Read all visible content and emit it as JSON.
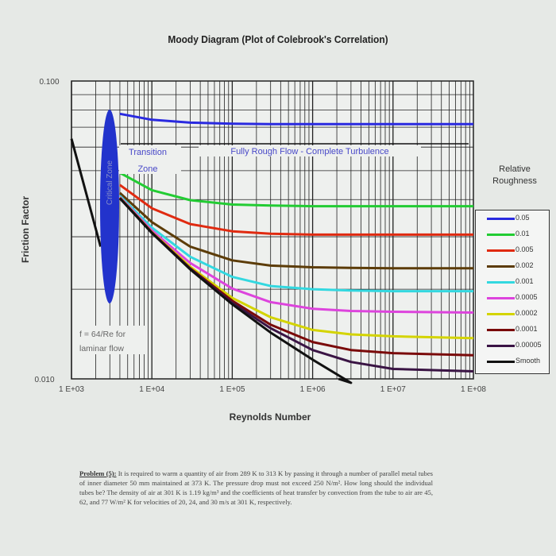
{
  "chart_data": {
    "type": "line",
    "title": "Moody Diagram (Plot of Colebrook's Correlation)",
    "xlabel": "Reynolds Number",
    "ylabel": "Friction Factor",
    "xscale": "log",
    "yscale": "log",
    "xlim": [
      1000,
      100000000
    ],
    "ylim": [
      0.01,
      0.1
    ],
    "grid": true,
    "x_tick_labels": [
      "1 E+03",
      "1 E+04",
      "1 E+05",
      "1 E+06",
      "1 E+07",
      "1 E+08"
    ],
    "y_tick_labels": [
      "0.100",
      "0.010"
    ],
    "legend_title": "Relative Roughness",
    "legend_placement": "right",
    "annotations": {
      "critical_zone": "Critical Zone",
      "transition": "Transition",
      "zone": "Zone",
      "fully_rough": "Fully Rough Flow - Complete Turbulence",
      "laminar_1": "f = 64/Re for",
      "laminar_2": "laminar flow"
    },
    "laminar": {
      "x": [
        1000,
        2300
      ],
      "y": [
        0.064,
        0.0278
      ],
      "color": "#111111"
    },
    "x": [
      4000,
      10000,
      30000,
      100000,
      300000,
      1000000,
      3000000,
      10000000,
      100000000
    ],
    "series": [
      {
        "name": "0.05",
        "color": "#2a2ae0",
        "values": [
          0.0776,
          0.0741,
          0.0725,
          0.0719,
          0.0717,
          0.0717,
          0.0717,
          0.0717,
          0.0717
        ]
      },
      {
        "name": "0.01",
        "color": "#22cc33",
        "values": [
          0.0492,
          0.043,
          0.0398,
          0.0385,
          0.0382,
          0.038,
          0.038,
          0.038,
          0.038
        ]
      },
      {
        "name": "0.005",
        "color": "#e02a10",
        "values": [
          0.0448,
          0.0374,
          0.0331,
          0.0313,
          0.0307,
          0.0305,
          0.0305,
          0.0305,
          0.0305
        ]
      },
      {
        "name": "0.002",
        "color": "#5c3c08",
        "values": [
          0.0421,
          0.0336,
          0.0278,
          0.025,
          0.024,
          0.0237,
          0.0236,
          0.0235,
          0.0235
        ]
      },
      {
        "name": "0.001",
        "color": "#33d8e0",
        "values": [
          0.0412,
          0.0322,
          0.0257,
          0.022,
          0.0205,
          0.02,
          0.0198,
          0.0197,
          0.0197
        ]
      },
      {
        "name": "0.0005",
        "color": "#dd44dd",
        "values": [
          0.0408,
          0.0315,
          0.0245,
          0.0201,
          0.0181,
          0.0172,
          0.0169,
          0.0168,
          0.0167
        ]
      },
      {
        "name": "0.0002",
        "color": "#d4d400",
        "values": [
          0.0406,
          0.0311,
          0.0238,
          0.0187,
          0.0161,
          0.0146,
          0.0141,
          0.0139,
          0.0137
        ]
      },
      {
        "name": "0.0001",
        "color": "#7a0a0a",
        "values": [
          0.0405,
          0.031,
          0.0235,
          0.0183,
          0.0152,
          0.0133,
          0.0125,
          0.0122,
          0.012
        ]
      },
      {
        "name": "0.00005",
        "color": "#3a1444",
        "values": [
          0.0404,
          0.0309,
          0.0234,
          0.018,
          0.0148,
          0.0125,
          0.0114,
          0.0108,
          0.0106
        ]
      },
      {
        "name": "Smooth",
        "color": "#111111",
        "values": [
          0.0404,
          0.0309,
          0.0233,
          0.0178,
          0.0143,
          0.0116,
          0.0097,
          null,
          null
        ]
      }
    ]
  },
  "problem": {
    "label": "Problem (5):",
    "text": "It is required to warm a quantity of air from 289 K to 313 K by passing it through a number of parallel metal tubes of inner diameter 50 mm maintained at 373 K. The pressure drop must not exceed 250 N/m². How long should the individual tubes be? The density of air at 301 K is 1.19 kg/m³ and the coefficients of heat transfer by convection from the tube to air are 45, 62, and 77 W/m² K for velocities of 20, 24, and 30 m/s at 301 K, respectively."
  }
}
